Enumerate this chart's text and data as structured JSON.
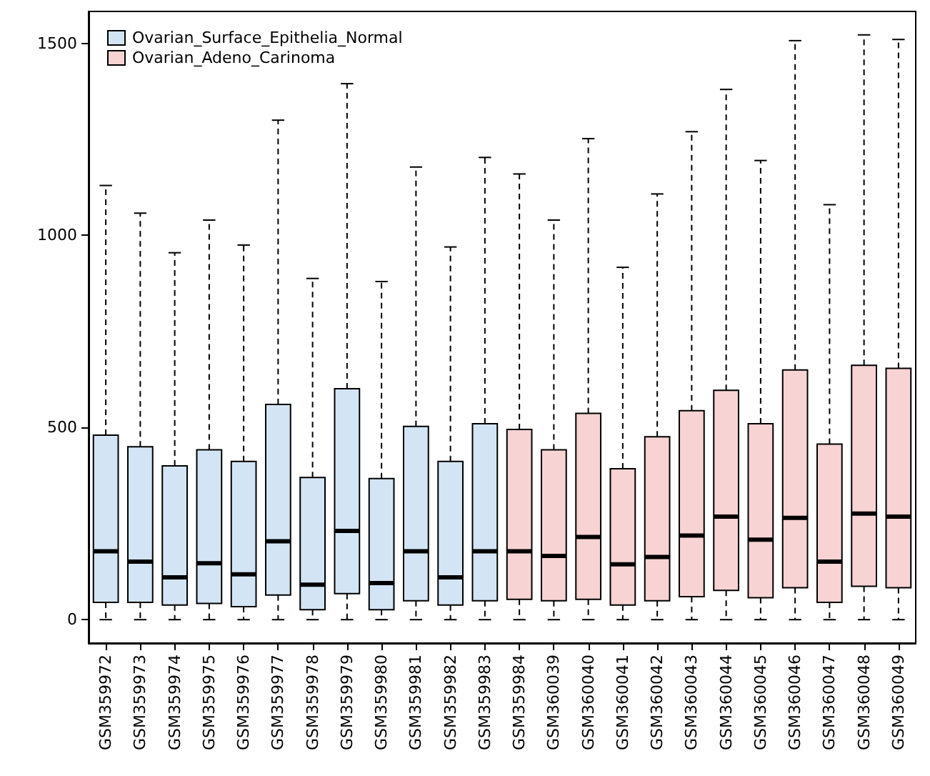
{
  "chart_data": {
    "type": "box",
    "categories": [
      "GSM359972",
      "GSM359973",
      "GSM359974",
      "GSM359975",
      "GSM359976",
      "GSM359977",
      "GSM359978",
      "GSM359979",
      "GSM359980",
      "GSM359981",
      "GSM359982",
      "GSM359983",
      "GSM359984",
      "GSM360039",
      "GSM360040",
      "GSM360041",
      "GSM360042",
      "GSM360043",
      "GSM360044",
      "GSM360045",
      "GSM360046",
      "GSM360047",
      "GSM360048",
      "GSM360049"
    ],
    "series": [
      {
        "name": "Ovarian_Surface_Epithelia_Normal",
        "color": "#d3e5f5",
        "boxes": [
          {
            "low": 0,
            "q1": 45,
            "median": 178,
            "q3": 480,
            "high": 1130
          },
          {
            "low": 0,
            "q1": 45,
            "median": 151,
            "q3": 450,
            "high": 1058
          },
          {
            "low": 0,
            "q1": 38,
            "median": 110,
            "q3": 400,
            "high": 955
          },
          {
            "low": 0,
            "q1": 42,
            "median": 147,
            "q3": 442,
            "high": 1040
          },
          {
            "low": 0,
            "q1": 34,
            "median": 118,
            "q3": 412,
            "high": 975
          },
          {
            "low": 0,
            "q1": 64,
            "median": 204,
            "q3": 560,
            "high": 1300
          },
          {
            "low": 0,
            "q1": 26,
            "median": 91,
            "q3": 370,
            "high": 888
          },
          {
            "low": 0,
            "q1": 68,
            "median": 231,
            "q3": 601,
            "high": 1395
          },
          {
            "low": 0,
            "q1": 26,
            "median": 95,
            "q3": 367,
            "high": 880
          },
          {
            "low": 0,
            "q1": 49,
            "median": 178,
            "q3": 503,
            "high": 1178
          },
          {
            "low": 0,
            "q1": 38,
            "median": 110,
            "q3": 412,
            "high": 970
          },
          {
            "low": 0,
            "q1": 49,
            "median": 178,
            "q3": 510,
            "high": 1203
          },
          null,
          null,
          null,
          null,
          null,
          null,
          null,
          null,
          null,
          null,
          null,
          null
        ]
      },
      {
        "name": "Ovarian_Adeno_Carinoma",
        "color": "#f7d3d3",
        "boxes": [
          null,
          null,
          null,
          null,
          null,
          null,
          null,
          null,
          null,
          null,
          null,
          null,
          {
            "low": 0,
            "q1": 53,
            "median": 178,
            "q3": 495,
            "high": 1160
          },
          {
            "low": 0,
            "q1": 49,
            "median": 166,
            "q3": 442,
            "high": 1040
          },
          {
            "low": 0,
            "q1": 53,
            "median": 215,
            "q3": 537,
            "high": 1252
          },
          {
            "low": 0,
            "q1": 38,
            "median": 144,
            "q3": 393,
            "high": 917
          },
          {
            "low": 0,
            "q1": 49,
            "median": 163,
            "q3": 476,
            "high": 1108
          },
          {
            "low": 0,
            "q1": 60,
            "median": 219,
            "q3": 544,
            "high": 1270
          },
          {
            "low": 0,
            "q1": 76,
            "median": 268,
            "q3": 597,
            "high": 1380
          },
          {
            "low": 0,
            "q1": 57,
            "median": 208,
            "q3": 510,
            "high": 1195
          },
          {
            "low": 0,
            "q1": 83,
            "median": 265,
            "q3": 650,
            "high": 1507
          },
          {
            "low": 0,
            "q1": 45,
            "median": 151,
            "q3": 457,
            "high": 1080
          },
          {
            "low": 0,
            "q1": 87,
            "median": 276,
            "q3": 662,
            "high": 1522
          },
          {
            "low": 0,
            "q1": 83,
            "median": 268,
            "q3": 654,
            "high": 1510
          }
        ]
      }
    ],
    "ylim": [
      -61,
      1583
    ],
    "yticks": [
      0,
      500,
      1000,
      1500
    ],
    "grid": false,
    "legend": "top left",
    "line_style": "dashed"
  }
}
